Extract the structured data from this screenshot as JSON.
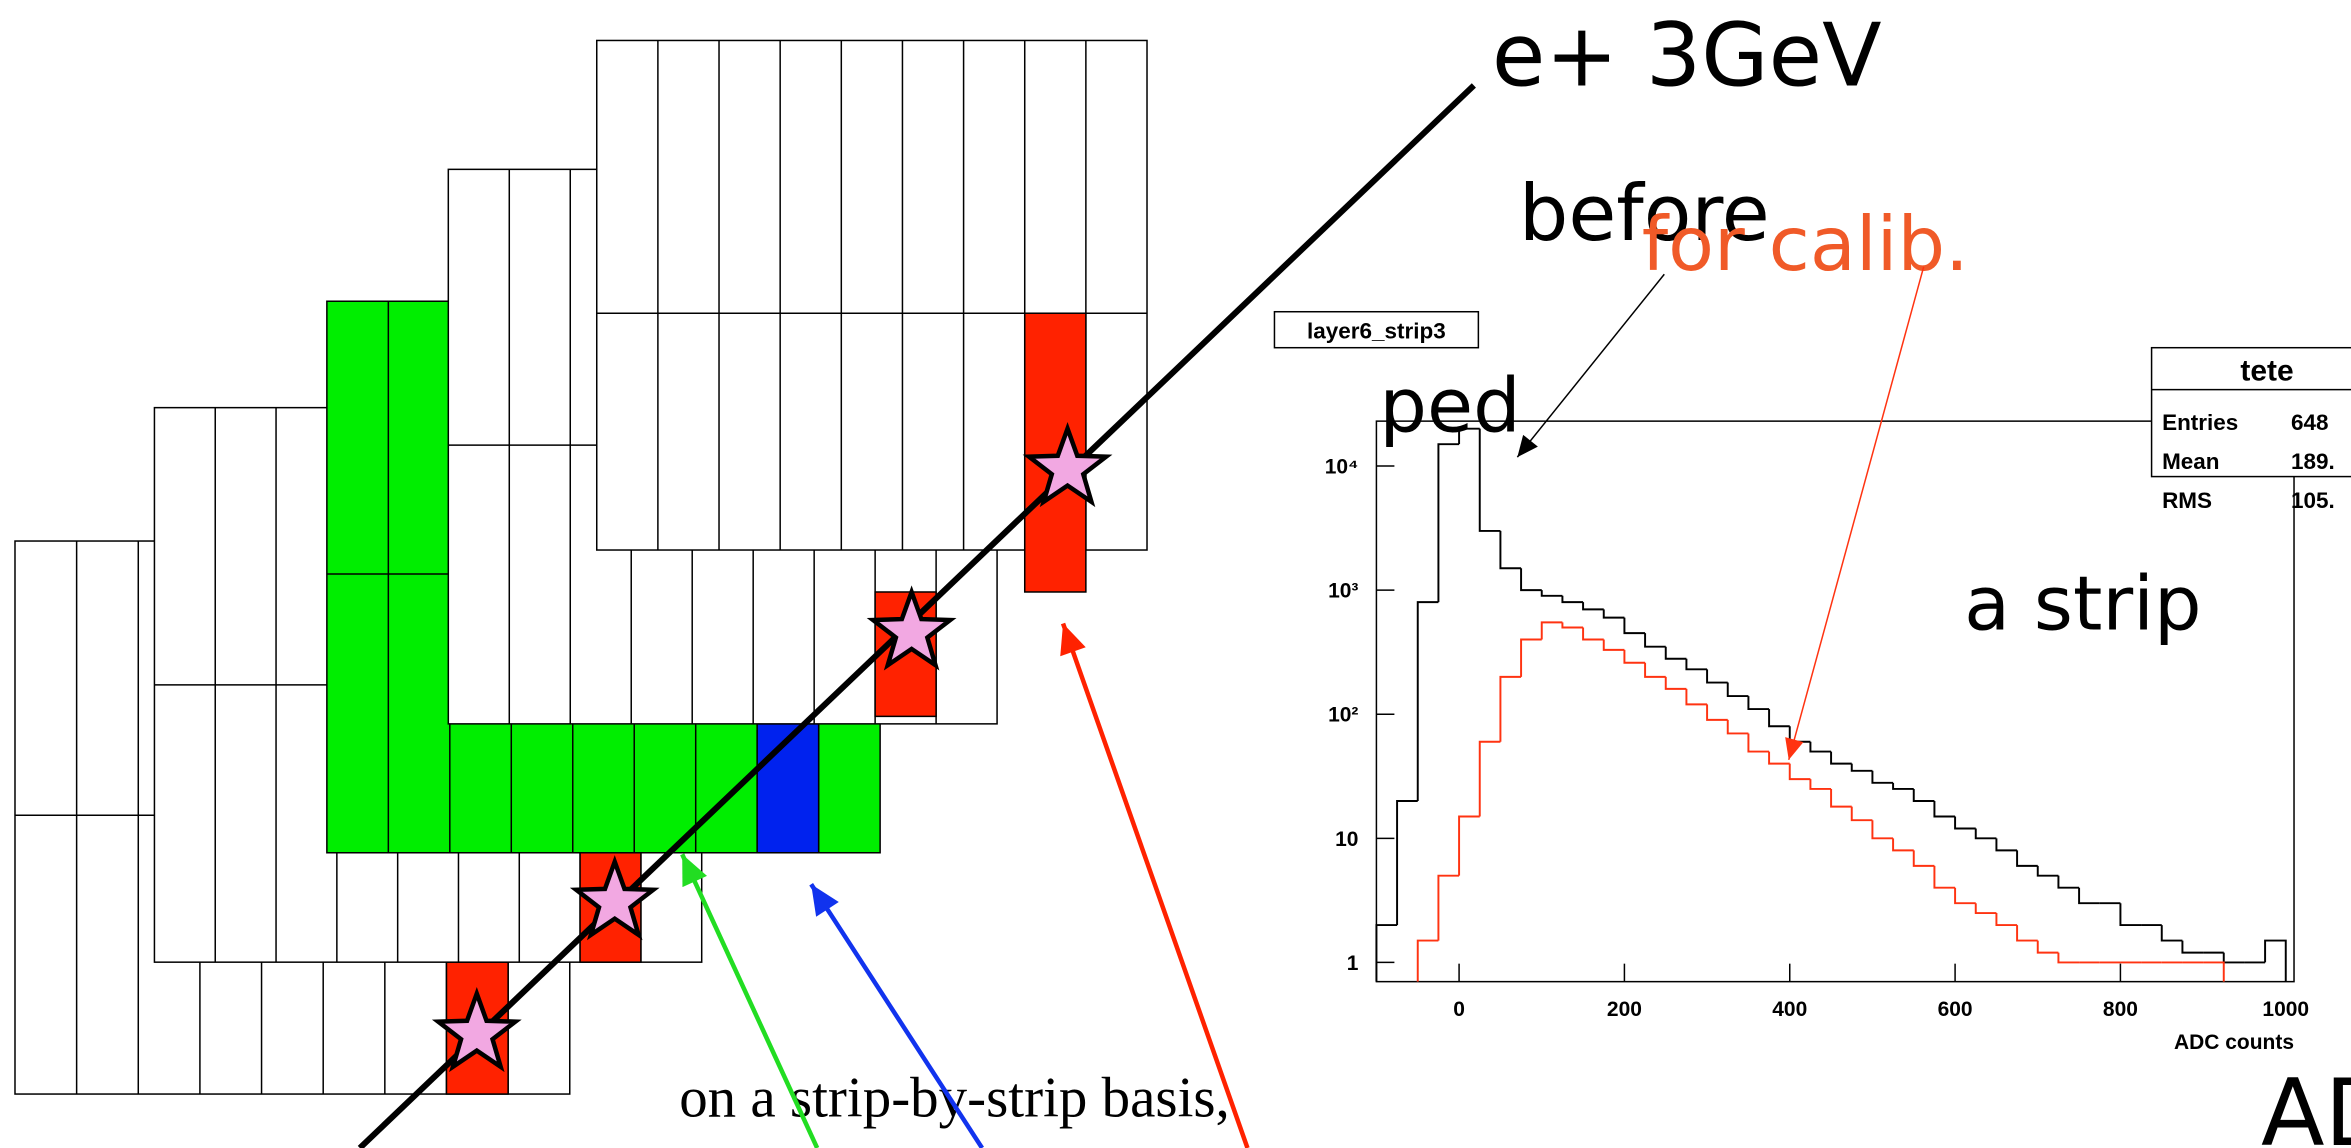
{
  "labels": {
    "beam": "e+ 3GeV",
    "before": "before",
    "for_calib": "for calib.",
    "ped": "ped",
    "a_strip": "a strip",
    "basis": "on a strip-by-strip basis,",
    "adc": "ADC"
  },
  "chart_data": {
    "type": "histogram",
    "title": "layer6_strip3",
    "x_label": "ADC counts",
    "log_y": true,
    "xlim": [
      -100,
      1010
    ],
    "xticks": [
      0,
      200,
      400,
      600,
      800,
      1000
    ],
    "ylim": [
      0.7,
      23000
    ],
    "yticks": [
      1,
      10,
      {
        "value": 100,
        "label": "10²"
      },
      {
        "value": 1000,
        "label": "10³"
      },
      {
        "value": 10000,
        "label": "10⁴"
      }
    ],
    "bins": [
      -100,
      -75,
      -50,
      -25,
      0,
      25,
      50,
      75,
      100,
      125,
      150,
      175,
      200,
      225,
      250,
      275,
      300,
      325,
      350,
      375,
      400,
      425,
      450,
      475,
      500,
      525,
      550,
      575,
      600,
      625,
      650,
      675,
      700,
      725,
      750,
      775,
      800,
      825,
      850,
      875,
      900,
      925,
      950,
      975,
      1000
    ],
    "series": [
      {
        "color": "#000000",
        "values": [
          2,
          20,
          800,
          15000,
          20000,
          3000,
          1500,
          1000,
          900,
          800,
          700,
          600,
          450,
          350,
          280,
          230,
          180,
          140,
          110,
          80,
          60,
          50,
          40,
          35,
          28,
          25,
          20,
          15,
          12,
          10,
          8,
          6,
          5,
          4,
          3,
          3,
          2,
          2,
          1.5,
          1.2,
          1.2,
          1,
          1,
          1.5
        ]
      },
      {
        "color": "#ff3311",
        "values": [
          null,
          null,
          1.5,
          5,
          15,
          60,
          200,
          400,
          550,
          500,
          400,
          330,
          260,
          200,
          160,
          120,
          90,
          70,
          50,
          40,
          30,
          25,
          18,
          14,
          10,
          8,
          6,
          4,
          3,
          2.5,
          2,
          1.5,
          1.2,
          1,
          1,
          1,
          1,
          1,
          1,
          1,
          1,
          null,
          null,
          null
        ]
      }
    ],
    "stats": {
      "name": "tete",
      "rows": [
        [
          "Entries",
          "648"
        ],
        [
          "Mean",
          "189."
        ],
        [
          "RMS",
          "105."
        ]
      ]
    }
  }
}
